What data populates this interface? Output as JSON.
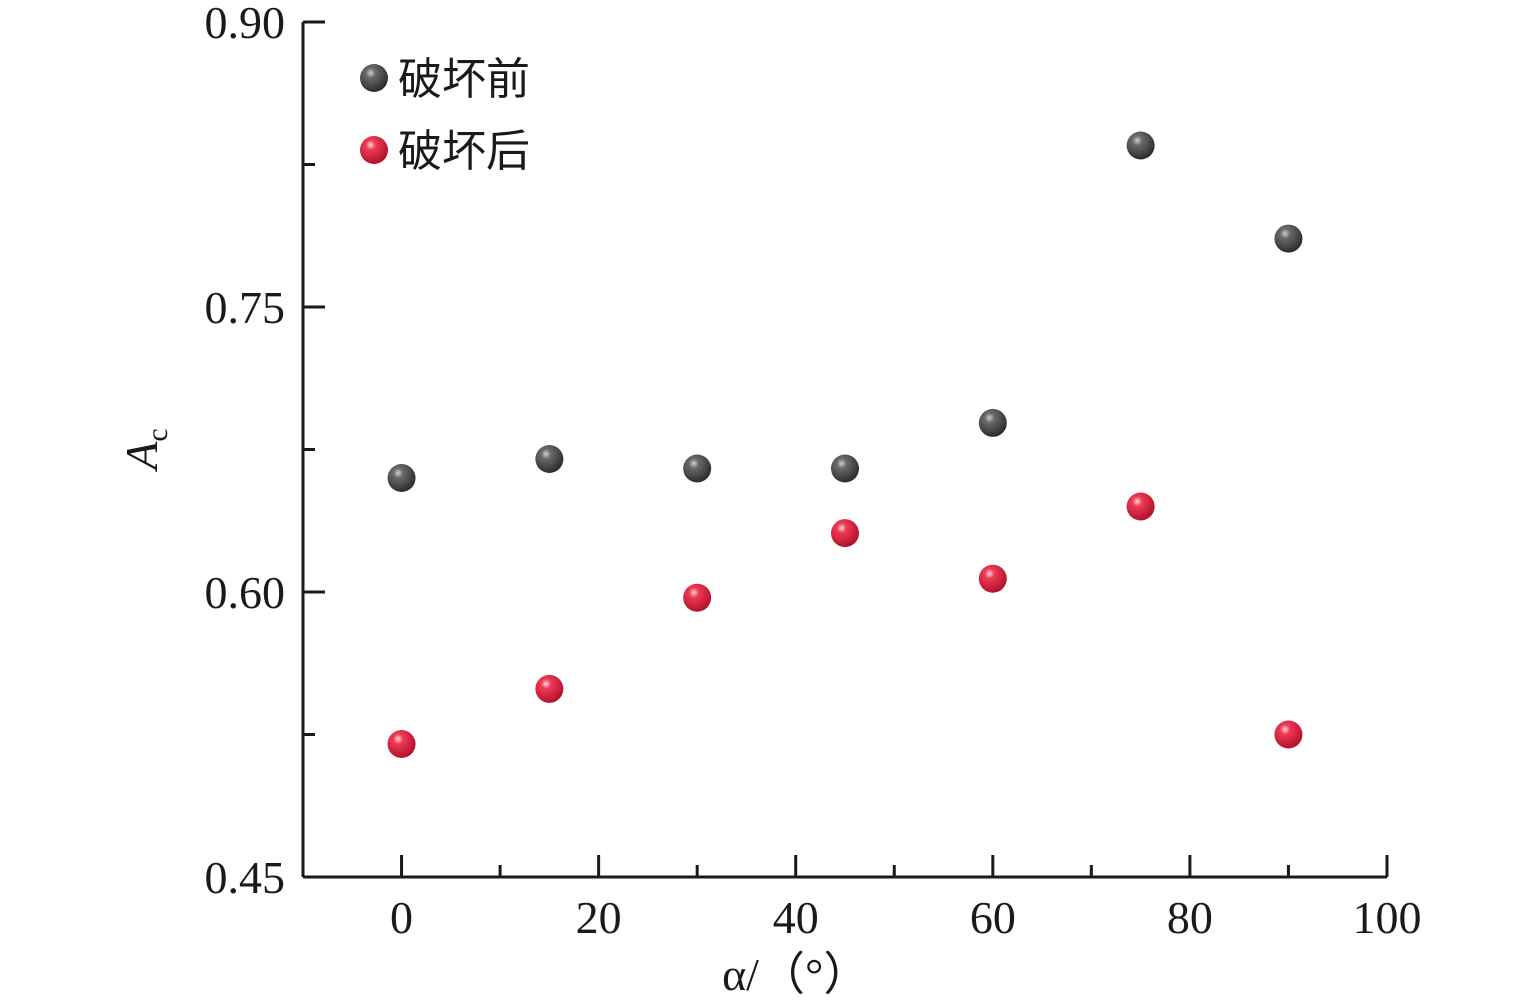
{
  "chart_data": {
    "type": "scatter",
    "xlabel": "α/（°）",
    "ylabel": {
      "main": "A",
      "sub": "c"
    },
    "xlim": [
      -10,
      100
    ],
    "ylim": [
      0.45,
      0.9
    ],
    "xticks": [
      0,
      20,
      40,
      60,
      80,
      100
    ],
    "xtick_labels": [
      "0",
      "20",
      "40",
      "60",
      "80",
      "100"
    ],
    "yticks": [
      0.45,
      0.6,
      0.75,
      0.9
    ],
    "ytick_labels": [
      "0.45",
      "0.60",
      "0.75",
      "0.90"
    ],
    "x_minor_ticks": [
      10,
      30,
      50,
      70,
      90
    ],
    "y_minor_ticks": [
      0.525,
      0.675,
      0.825
    ],
    "grid": false,
    "legend_position": "top-left",
    "series": [
      {
        "name": "破坏前",
        "color": "#4a4a4a",
        "points": [
          {
            "x": 0,
            "y": 0.66
          },
          {
            "x": 15,
            "y": 0.67
          },
          {
            "x": 30,
            "y": 0.665
          },
          {
            "x": 45,
            "y": 0.665
          },
          {
            "x": 60,
            "y": 0.689
          },
          {
            "x": 75,
            "y": 0.835
          },
          {
            "x": 90,
            "y": 0.786
          }
        ]
      },
      {
        "name": "破坏后",
        "color": "#e0233f",
        "points": [
          {
            "x": 0,
            "y": 0.52
          },
          {
            "x": 15,
            "y": 0.549
          },
          {
            "x": 30,
            "y": 0.597
          },
          {
            "x": 45,
            "y": 0.631
          },
          {
            "x": 60,
            "y": 0.607
          },
          {
            "x": 75,
            "y": 0.645
          },
          {
            "x": 90,
            "y": 0.525
          }
        ]
      }
    ]
  }
}
